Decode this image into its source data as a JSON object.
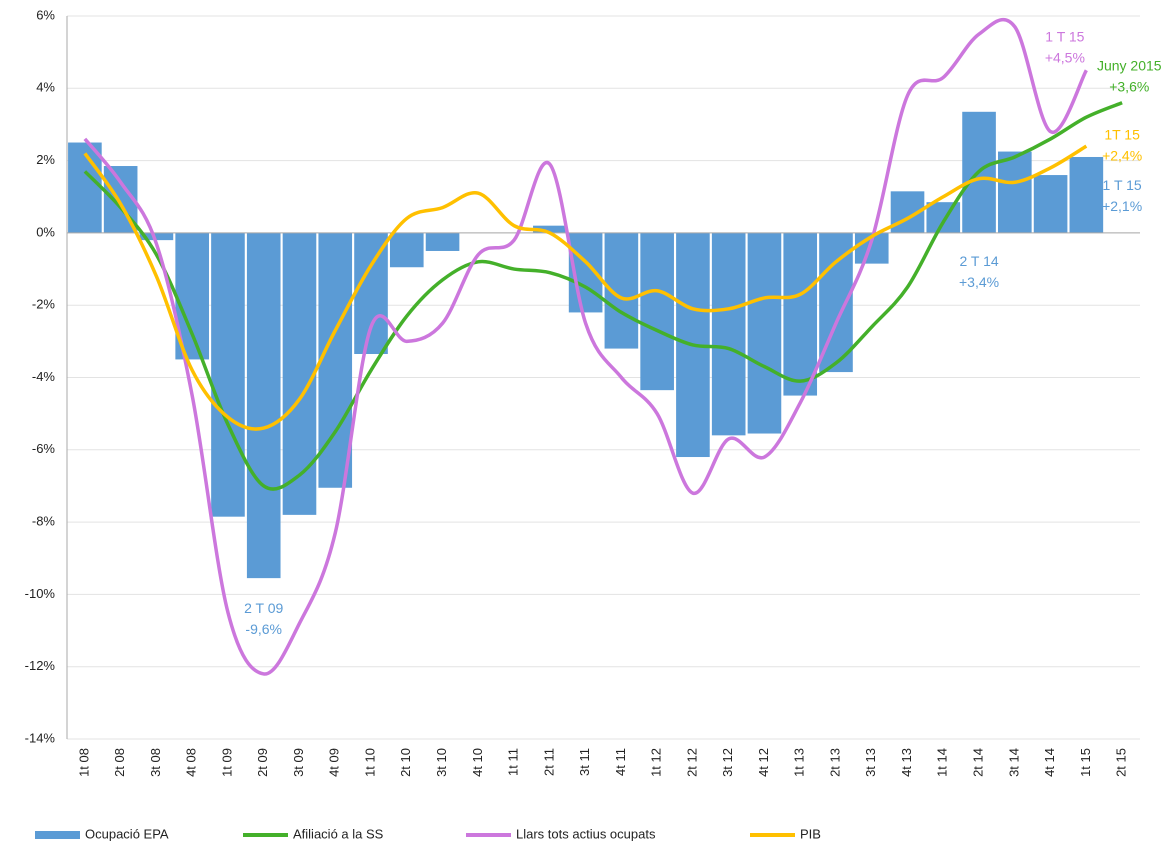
{
  "chart_data": {
    "type": "bar-line",
    "categories": [
      "1t 08",
      "2t 08",
      "3t 08",
      "4t 08",
      "1t 09",
      "2t 09",
      "3t 09",
      "4t 09",
      "1t 10",
      "2t 10",
      "3t 10",
      "4t 10",
      "1t 11",
      "2t 11",
      "3t 11",
      "4t 11",
      "1t 12",
      "2t 12",
      "3t 12",
      "4t 12",
      "1t 13",
      "2t 13",
      "3t 13",
      "4t 13",
      "1t 14",
      "2t 14",
      "3t 14",
      "4t 14",
      "1t 15",
      "2t 15"
    ],
    "series": [
      {
        "name": "Ocupació EPA",
        "kind": "bar",
        "color": "#5b9bd5",
        "values": [
          2.5,
          1.85,
          -0.2,
          -3.5,
          -7.85,
          -9.55,
          -7.8,
          -7.05,
          -3.35,
          -0.95,
          -0.5,
          0,
          0,
          0.2,
          -2.2,
          -3.2,
          -4.35,
          -6.2,
          -5.6,
          -5.55,
          -4.5,
          -3.85,
          -0.85,
          1.15,
          0.85,
          3.35,
          2.25,
          1.6,
          2.1,
          null
        ]
      },
      {
        "name": "Afiliació a la SS",
        "kind": "line",
        "color": "#44b02a",
        "values": [
          1.7,
          0.7,
          -0.6,
          -2.8,
          -5.3,
          -7.0,
          -6.7,
          -5.5,
          -3.8,
          -2.3,
          -1.3,
          -0.8,
          -1.0,
          -1.1,
          -1.5,
          -2.2,
          -2.7,
          -3.1,
          -3.2,
          -3.7,
          -4.1,
          -3.6,
          -2.6,
          -1.5,
          0.3,
          1.7,
          2.1,
          2.6,
          3.2,
          3.6
        ]
      },
      {
        "name": "Llars tots actius ocupats",
        "kind": "line",
        "color": "#cc77dd",
        "values": [
          2.6,
          1.4,
          -0.3,
          -4.5,
          -10.5,
          -12.2,
          -10.8,
          -8.3,
          -2.6,
          -3.0,
          -2.5,
          -0.6,
          -0.2,
          1.9,
          -2.5,
          -4.0,
          -5.0,
          -7.2,
          -5.7,
          -6.2,
          -4.7,
          -2.5,
          -0.2,
          3.8,
          4.3,
          5.5,
          5.7,
          2.8,
          4.5,
          null
        ]
      },
      {
        "name": "PIB",
        "kind": "line",
        "color": "#ffc000",
        "values": [
          2.2,
          0.8,
          -1.2,
          -3.8,
          -5.1,
          -5.4,
          -4.6,
          -2.7,
          -0.9,
          0.4,
          0.7,
          1.1,
          0.2,
          0.0,
          -0.8,
          -1.8,
          -1.6,
          -2.1,
          -2.1,
          -1.8,
          -1.7,
          -0.8,
          -0.1,
          0.4,
          1.0,
          1.5,
          1.4,
          1.8,
          2.4,
          null
        ]
      }
    ],
    "ylim": [
      -14,
      6
    ],
    "yticks": [
      {
        "value": -14,
        "label": "-14%"
      },
      {
        "value": -12,
        "label": "-12%"
      },
      {
        "value": -10,
        "label": "-10%"
      },
      {
        "value": -8,
        "label": "-8%"
      },
      {
        "value": -6,
        "label": "-6%"
      },
      {
        "value": -4,
        "label": "-4%"
      },
      {
        "value": -2,
        "label": "-2%"
      },
      {
        "value": 0,
        "label": "0%"
      },
      {
        "value": 2,
        "label": "2%"
      },
      {
        "value": 4,
        "label": "4%"
      },
      {
        "value": 6,
        "label": "6%"
      }
    ],
    "grid": true,
    "legend": "bottom",
    "annotations": [
      {
        "lines": [
          "2 T 09",
          "-9,6%"
        ],
        "color": "#5b9bd5",
        "category": 5,
        "value": -10.4
      },
      {
        "lines": [
          "2 T 14",
          "+3,4%"
        ],
        "color": "#5b9bd5",
        "category": 25,
        "value": -0.8
      },
      {
        "lines": [
          "1 T 15",
          "+2,1%"
        ],
        "color": "#5b9bd5",
        "category": 29,
        "value": 1.3
      },
      {
        "lines": [
          "1T 15",
          "+2,4%"
        ],
        "color": "#ffc000",
        "category": 29,
        "value": 2.7
      },
      {
        "lines": [
          "Juny 2015",
          "+3,6%"
        ],
        "color": "#44b02a",
        "category": 29.2,
        "value": 4.6
      },
      {
        "lines": [
          "1 T 15",
          "+4,5%"
        ],
        "color": "#cc77dd",
        "category": 27.4,
        "value": 5.4
      }
    ]
  }
}
